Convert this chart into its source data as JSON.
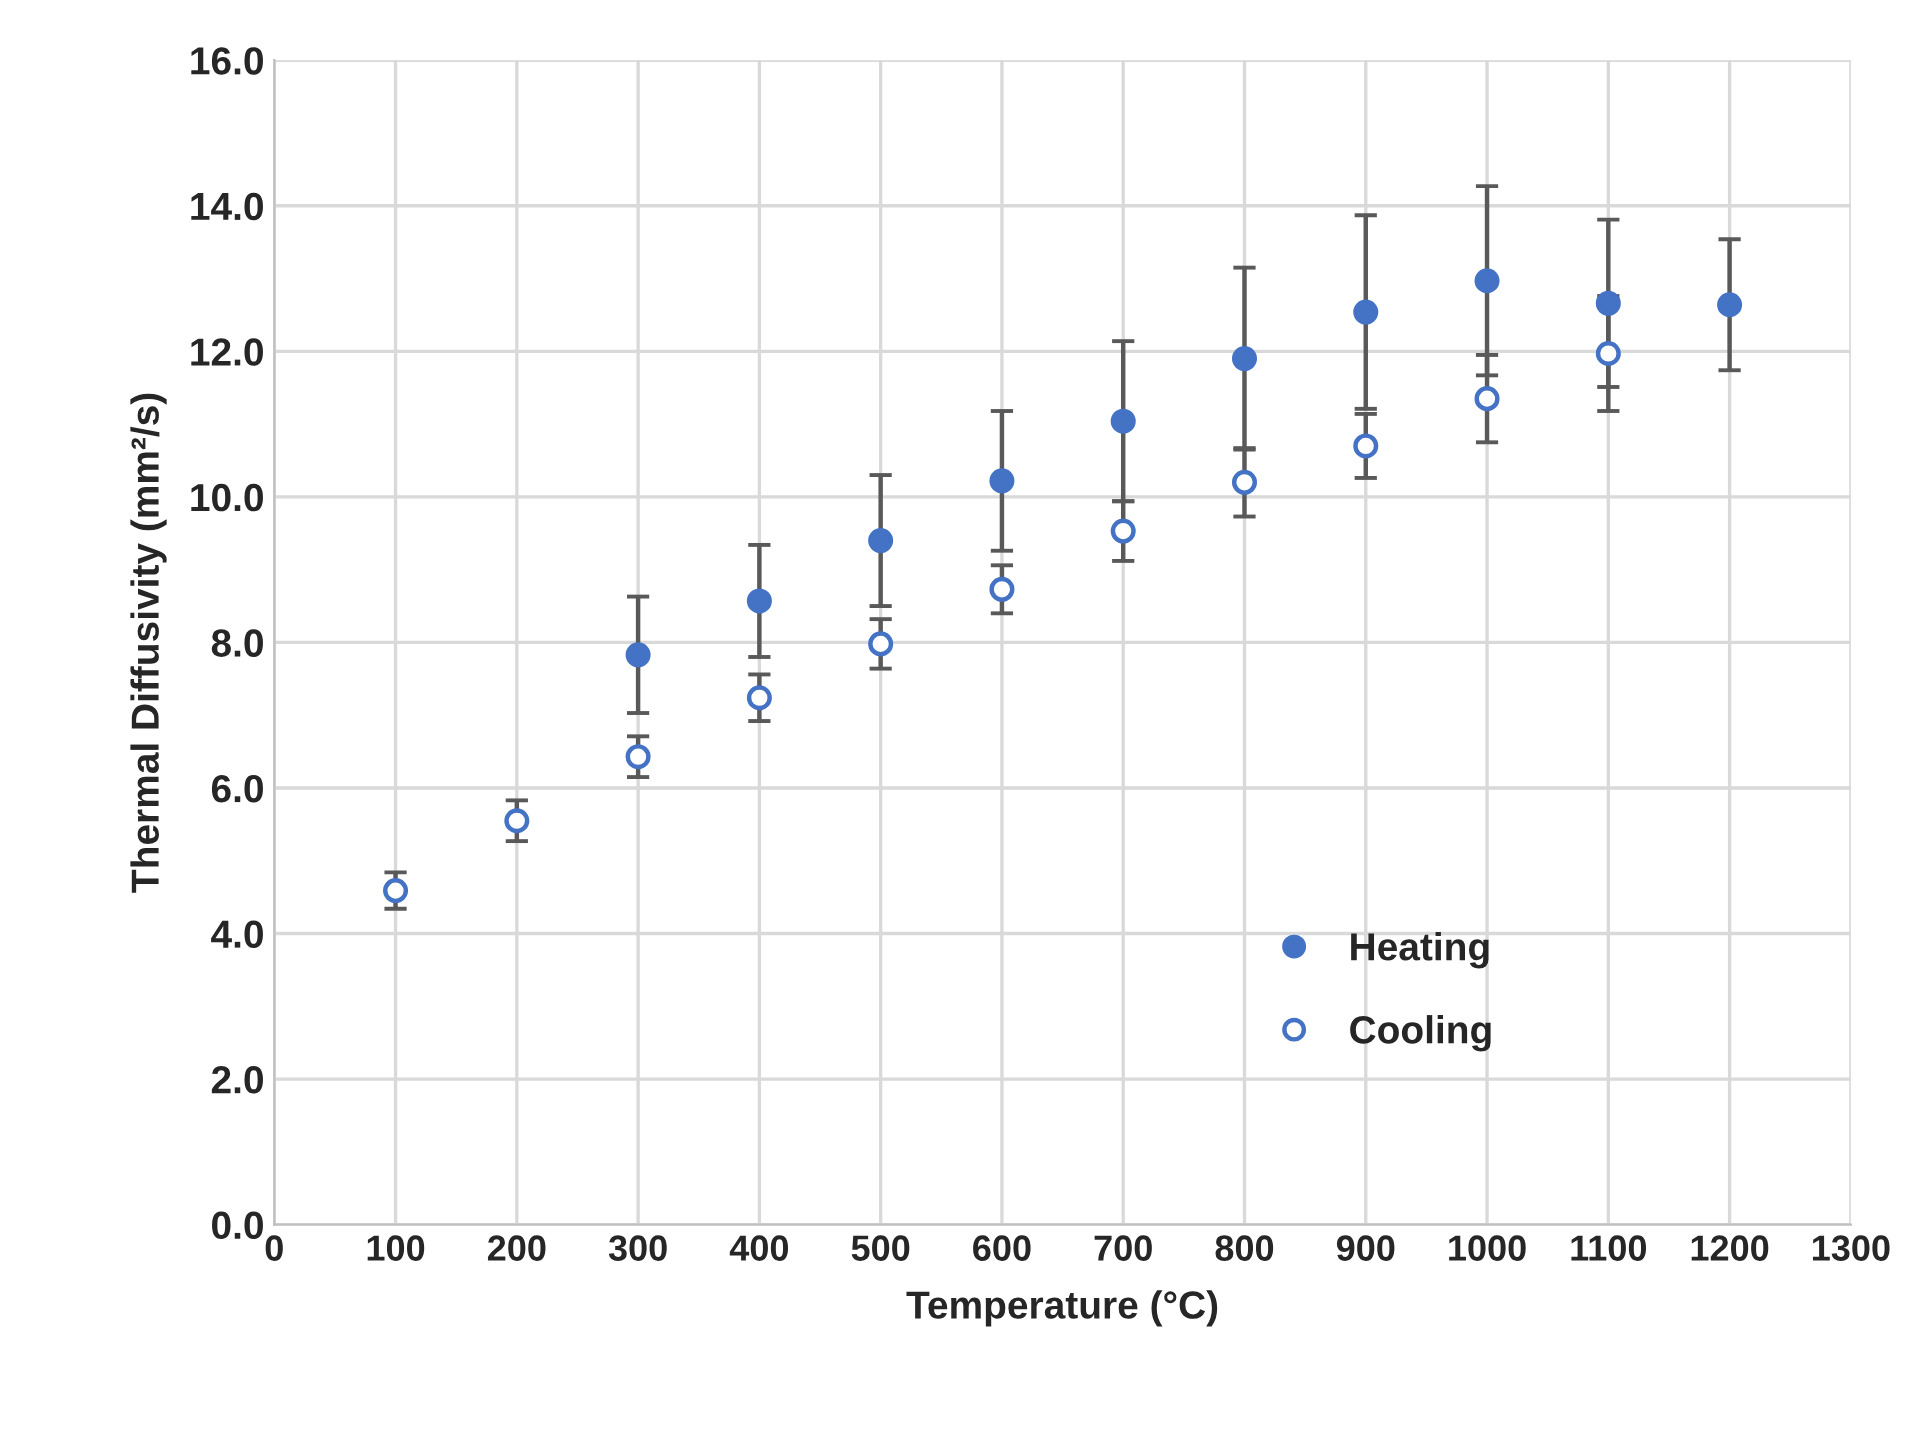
{
  "chart_data": {
    "type": "scatter",
    "xlabel": "Temperature (°C)",
    "ylabel": "Thermal Diffusivity (mm²/s)",
    "xlim": [
      0,
      1300
    ],
    "xticks": [
      0,
      100,
      200,
      300,
      400,
      500,
      600,
      700,
      800,
      900,
      1000,
      1100,
      1200,
      1300
    ],
    "ylim": [
      0,
      16
    ],
    "yticks": [
      {
        "value": 0,
        "label": "0.0"
      },
      {
        "value": 2,
        "label": "2.0"
      },
      {
        "value": 4,
        "label": "4.0"
      },
      {
        "value": 6,
        "label": "6.0"
      },
      {
        "value": 8,
        "label": "8.0"
      },
      {
        "value": 10,
        "label": "10.0"
      },
      {
        "value": 12,
        "label": "12.0"
      },
      {
        "value": 14,
        "label": "14.0"
      },
      {
        "value": 16,
        "label": "16.0"
      }
    ],
    "grid": true,
    "legend": "bottom right",
    "marker": "circle",
    "series": [
      {
        "name": "Heating",
        "color": "#4472c4",
        "x": [
          300,
          400,
          500,
          600,
          700,
          800,
          900,
          1000,
          1100,
          1200
        ],
        "values": [
          7.83,
          8.57,
          9.4,
          10.22,
          11.04,
          11.9,
          12.54,
          12.97,
          12.66,
          12.64
        ],
        "errors": [
          0.8,
          0.77,
          0.9,
          0.96,
          1.1,
          1.25,
          1.33,
          1.3,
          1.15,
          0.9
        ]
      },
      {
        "name": "Cooling",
        "color": "#4472c4",
        "x": [
          100,
          200,
          300,
          400,
          500,
          600,
          700,
          800,
          900,
          1000,
          1100
        ],
        "values": [
          4.59,
          5.55,
          6.43,
          7.24,
          7.98,
          8.73,
          9.53,
          10.2,
          10.7,
          11.35,
          11.97
        ],
        "errors": [
          0.25,
          0.28,
          0.28,
          0.32,
          0.34,
          0.33,
          0.41,
          0.47,
          0.44,
          0.6,
          0.79
        ]
      }
    ]
  }
}
